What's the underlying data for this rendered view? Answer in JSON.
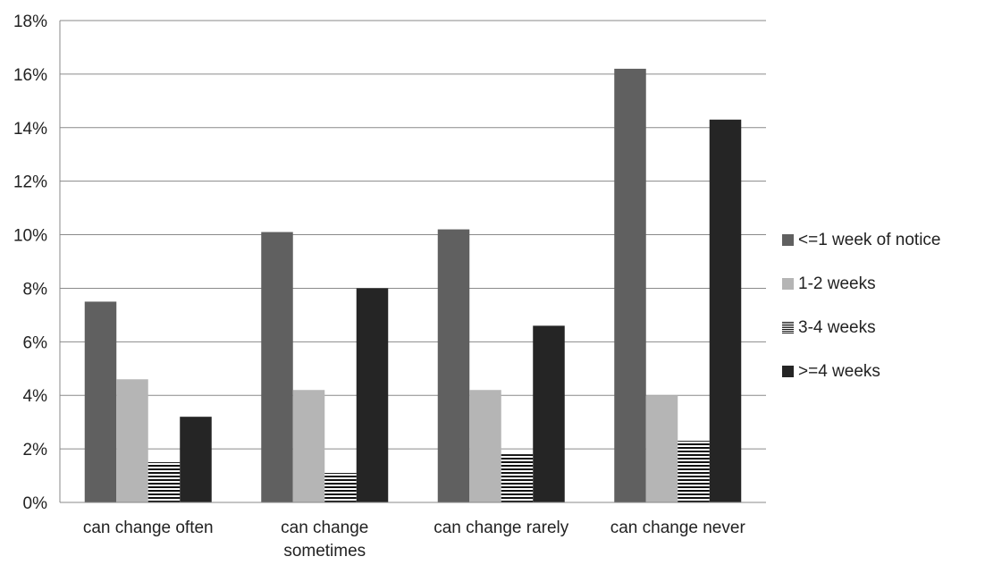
{
  "chart_data": {
    "type": "bar",
    "categories": [
      "can change often",
      "can change sometimes",
      "can change rarely",
      "can change never"
    ],
    "category_lines": [
      [
        "can change often"
      ],
      [
        "can change",
        "sometimes"
      ],
      [
        "can change rarely"
      ],
      [
        "can change never"
      ]
    ],
    "series": [
      {
        "name": "<=1 week of notice",
        "values": [
          7.5,
          10.1,
          10.2,
          16.2
        ],
        "color": "#606060"
      },
      {
        "name": "1-2 weeks",
        "values": [
          4.6,
          4.2,
          4.2,
          4.0
        ],
        "color": "#b5b5b5"
      },
      {
        "name": "3-4 weeks",
        "values": [
          1.5,
          1.1,
          1.8,
          2.3
        ],
        "color": "striped"
      },
      {
        "name": ">=4 weeks",
        "values": [
          3.2,
          8.0,
          6.6,
          14.3
        ],
        "color": "#252525"
      }
    ],
    "y_ticks": [
      "0%",
      "2%",
      "4%",
      "6%",
      "8%",
      "10%",
      "12%",
      "14%",
      "16%",
      "18%"
    ],
    "ylim": [
      0,
      18
    ],
    "y_unit": "%",
    "grid": true,
    "legend_position": "right",
    "title": "",
    "xlabel": "",
    "ylabel": ""
  }
}
